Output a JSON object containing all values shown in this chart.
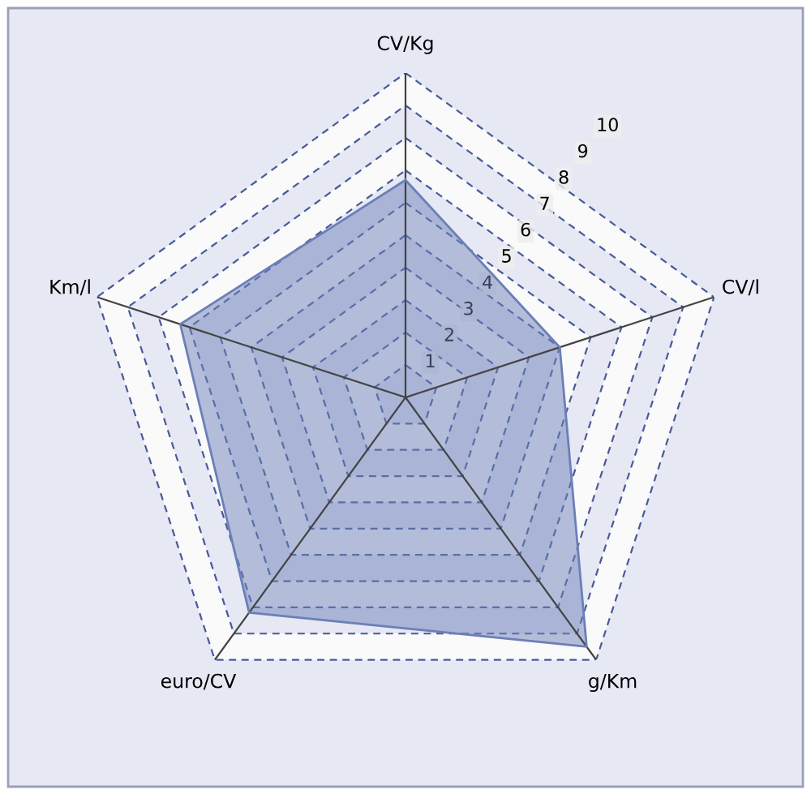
{
  "chart_data": {
    "type": "radar",
    "categories": [
      "CV/Kg",
      "CV/l",
      "g/Km",
      "euro/CV",
      "Km/l"
    ],
    "series": [
      {
        "color": "#6b7fb8",
        "values": [
          6.7,
          5.0,
          9.5,
          8.2,
          7.3
        ]
      }
    ],
    "ylim": [
      0,
      10
    ],
    "yticks": [
      1,
      2,
      3,
      4,
      5,
      6,
      7,
      8,
      9,
      10
    ],
    "grid": true,
    "line_style": "solid",
    "marker": "none"
  }
}
